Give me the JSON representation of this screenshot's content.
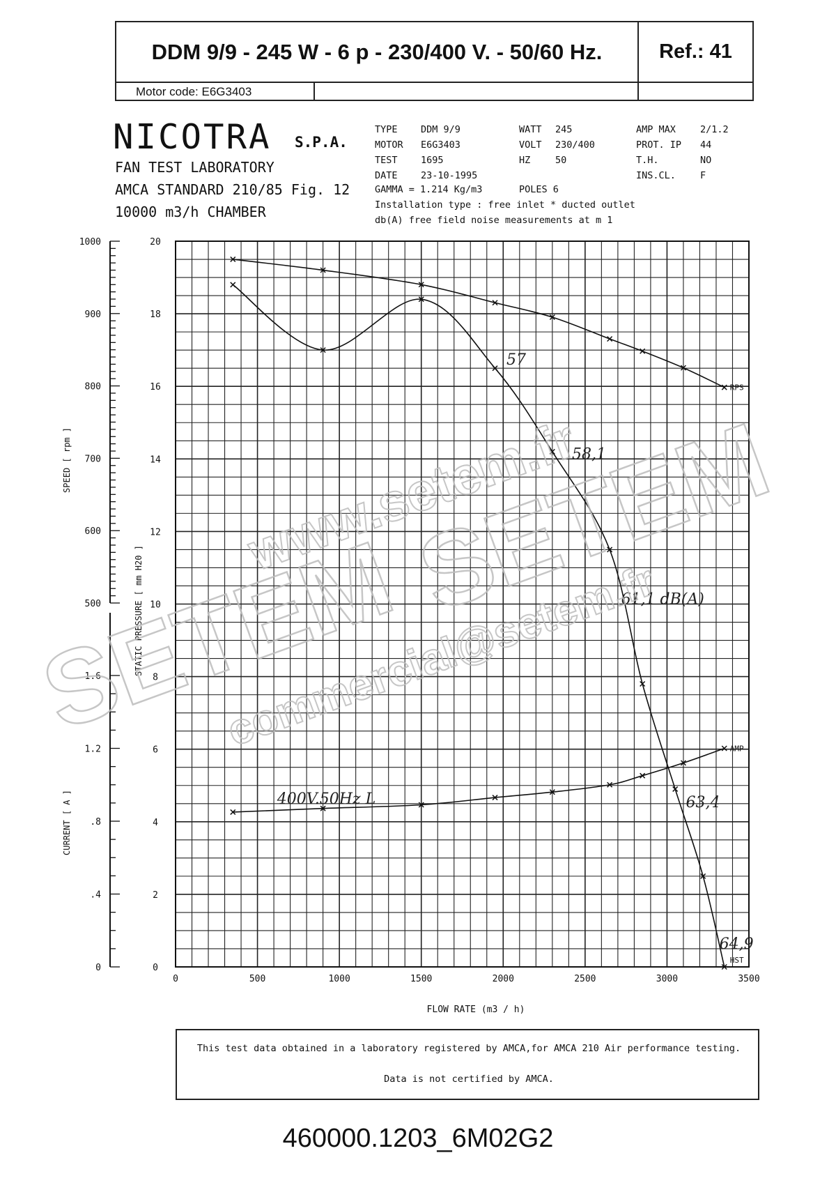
{
  "header": {
    "title": "DDM  9/9 - 245 W - 6 p - 230/400 V. - 50/60 Hz.",
    "ref": "Ref.:  41",
    "motor_code": "Motor code: E6G3403"
  },
  "company": {
    "name": "NICOTRA",
    "suffix": "S.P.A.",
    "lab": "FAN TEST LABORATORY",
    "standard": "AMCA STANDARD 210/85 Fig. 12",
    "chamber": "10000 m3/h  CHAMBER"
  },
  "specs": {
    "col1": [
      "TYPE",
      "MOTOR",
      "TEST",
      "DATE"
    ],
    "col2": [
      "DDM 9/9",
      "E6G3403",
      "1695",
      "23-10-1995"
    ],
    "col3": [
      "WATT",
      "VOLT",
      "HZ"
    ],
    "col4": [
      "245",
      "230/400",
      "50"
    ],
    "col5": [
      "AMP MAX",
      "PROT.  IP",
      "T.H.",
      "INS.CL."
    ],
    "col6": [
      "2/1.2",
      "44",
      "NO",
      "F"
    ],
    "gamma": "GAMMA = 1.214 Kg/m3",
    "poles": "POLES 6",
    "installation": "Installation type :  free inlet * ducted outlet",
    "noise": "db(A)  free field noise measurements at m  1"
  },
  "chart_data": {
    "type": "line",
    "xlabel": "FLOW RATE   (m3 / h)",
    "xlim": [
      0,
      3500
    ],
    "x_ticks": [
      "0",
      "500",
      "1000",
      "1500",
      "2000",
      "2500",
      "3000",
      "3500"
    ],
    "axes": {
      "pressure": {
        "label": "STATIC PRESSURE   [ mm H20 ]",
        "lim": [
          0,
          20
        ],
        "ticks": [
          "0",
          "2",
          "4",
          "6",
          "8",
          "10",
          "12",
          "14",
          "16",
          "18",
          "20"
        ]
      },
      "speed": {
        "label": "SPEED   [ rpm ]",
        "lim": [
          500,
          1000
        ],
        "ticks": [
          "500",
          "600",
          "700",
          "800",
          "900",
          "1000"
        ]
      },
      "current": {
        "label": "CURRENT   [ A ]",
        "lim": [
          0,
          1.6
        ],
        "ticks": [
          "0",
          ".4",
          ".8",
          "1.2",
          "1.6"
        ]
      }
    },
    "series": [
      {
        "name": "RPS",
        "axis": "speed",
        "x": [
          350,
          900,
          1500,
          1950,
          2300,
          2650,
          2850,
          3100,
          3350
        ],
        "y": [
          975,
          960,
          940,
          915,
          895,
          865,
          848,
          825,
          798
        ]
      },
      {
        "name": "HST",
        "axis": "pressure",
        "x": [
          350,
          900,
          1500,
          1950,
          2300,
          2650,
          2850,
          3050,
          3220,
          3350
        ],
        "y": [
          18.8,
          17,
          18.4,
          16.5,
          14.2,
          11.5,
          7.8,
          4.9,
          2.5,
          0
        ]
      },
      {
        "name": "AMP",
        "axis": "current",
        "x": [
          350,
          900,
          1500,
          1950,
          2300,
          2650,
          2850,
          3100,
          3350
        ],
        "y": [
          0.85,
          0.87,
          0.89,
          0.93,
          0.96,
          1.0,
          1.05,
          1.12,
          1.2
        ]
      }
    ],
    "annotations": [
      {
        "text": "57",
        "x": 2020,
        "y": 16.6
      },
      {
        "text": "58,1",
        "x": 2420,
        "y": 14.0
      },
      {
        "text": "61,1 dB(A)",
        "x": 2720,
        "y": 10.0
      },
      {
        "text": "63,4",
        "x": 3115,
        "y": 4.4
      },
      {
        "text": "64,9",
        "x": 3320,
        "y": 0.5
      },
      {
        "text": "400V.50Hz L",
        "x": 620,
        "y": 4.5
      }
    ]
  },
  "footer": {
    "line1": "This test data obtained in a laboratory registered by AMCA,for AMCA 210 Air performance testing.",
    "line2": "Data is not certified by AMCA."
  },
  "watermark": {
    "url": "www.setem.fr",
    "brand": "SETEM",
    "email": "commercial@setem.fr"
  },
  "doc_code": "460000.1203_6M02G2"
}
